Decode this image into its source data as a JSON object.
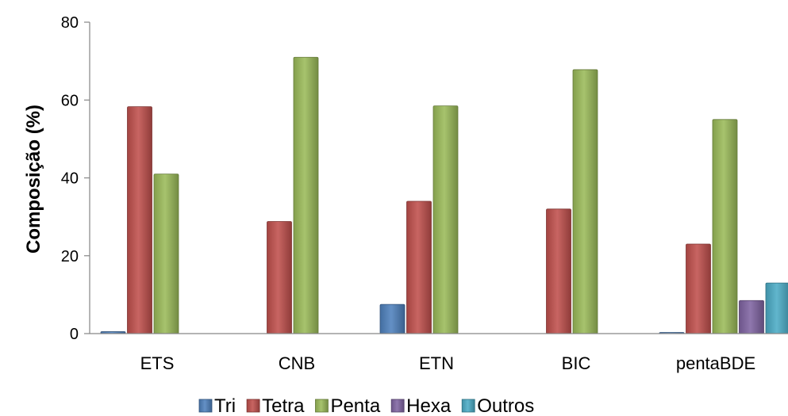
{
  "chart_data": {
    "type": "bar",
    "title": "",
    "xlabel": "",
    "ylabel": "Composição (%)",
    "ylim": [
      0,
      80
    ],
    "yticks": [
      0,
      20,
      40,
      60,
      80
    ],
    "grid": false,
    "legend_position": "bottom",
    "categories": [
      "ETS",
      "CNB",
      "ETN",
      "BIC",
      "pentaBDE"
    ],
    "series": [
      {
        "name": "Tri",
        "color": "#4f81bd",
        "values": [
          0.5,
          0,
          7.5,
          0,
          0.3
        ]
      },
      {
        "name": "Tetra",
        "color": "#c0504d",
        "values": [
          58.3,
          28.8,
          34,
          32,
          23
        ]
      },
      {
        "name": "Penta",
        "color": "#9bbb59",
        "values": [
          41,
          71,
          58.5,
          67.8,
          55
        ]
      },
      {
        "name": "Hexa",
        "color": "#8064a2",
        "values": [
          0,
          0,
          0,
          0,
          8.5
        ]
      },
      {
        "name": "Outros",
        "color": "#4bacc6",
        "values": [
          0,
          0,
          0,
          0,
          13
        ]
      }
    ]
  }
}
